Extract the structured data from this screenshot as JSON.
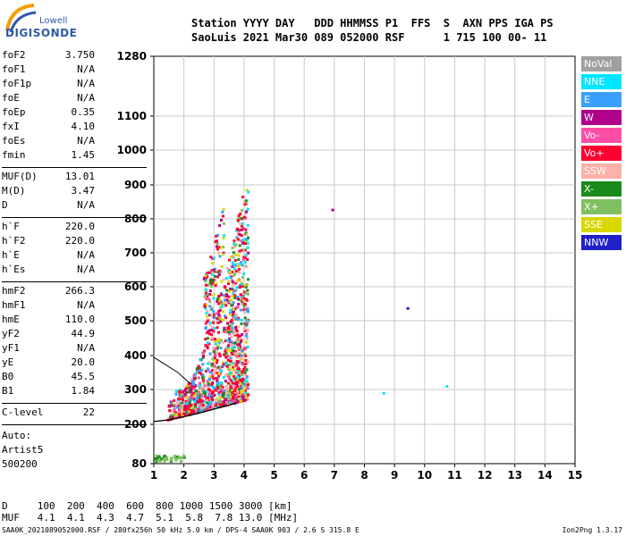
{
  "logo": {
    "line1": "Lowell",
    "line2": "DIGISONDE"
  },
  "header": {
    "line1": "Station YYYY DAY   DDD HHMMSS P1  FFS  S  AXN PPS IGA PS",
    "line2": "SaoLuis 2021 Mar30 089 052000 RSF      1 715 100 00- 11"
  },
  "params": [
    {
      "label": "foF2",
      "value": "3.750"
    },
    {
      "label": "foF1",
      "value": "N/A"
    },
    {
      "label": "foF1p",
      "value": "N/A"
    },
    {
      "label": "foE",
      "value": "N/A"
    },
    {
      "label": "foEp",
      "value": "0.35"
    },
    {
      "label": "fxI",
      "value": "4.10"
    },
    {
      "label": "foEs",
      "value": "N/A"
    },
    {
      "label": "fmin",
      "value": "1.45"
    },
    {
      "label": "MUF(D)",
      "value": "13.01"
    },
    {
      "label": "M(D)",
      "value": "3.47"
    },
    {
      "label": "D",
      "value": "N/A"
    },
    {
      "label": "h`F",
      "value": "220.0"
    },
    {
      "label": "h`F2",
      "value": "220.0"
    },
    {
      "label": "h`E",
      "value": "N/A"
    },
    {
      "label": "h`Es",
      "value": "N/A"
    },
    {
      "label": "hmF2",
      "value": "266.3"
    },
    {
      "label": "hmF1",
      "value": "N/A"
    },
    {
      "label": "hmE",
      "value": "110.0"
    },
    {
      "label": "yF2",
      "value": "44.9"
    },
    {
      "label": "yF1",
      "value": "N/A"
    },
    {
      "label": "yE",
      "value": "20.0"
    },
    {
      "label": "B0",
      "value": "45.5"
    },
    {
      "label": "B1",
      "value": "1.84"
    },
    {
      "label": "C-level",
      "value": "22"
    }
  ],
  "auto": {
    "line1": "Auto:",
    "line2": "Artist5",
    "line3": "500200"
  },
  "legend": [
    {
      "label": "NoVal",
      "color": "#a0a0a0"
    },
    {
      "label": "NNE",
      "color": "#00e5ff"
    },
    {
      "label": "E",
      "color": "#3aa0ff"
    },
    {
      "label": "W",
      "color": "#b0008c"
    },
    {
      "label": "Vo-",
      "color": "#ff4da6"
    },
    {
      "label": "Vo+",
      "color": "#ff0030"
    },
    {
      "label": "SSW",
      "color": "#ffb0a8"
    },
    {
      "label": "X-",
      "color": "#1a8a1a"
    },
    {
      "label": "X+",
      "color": "#80c060"
    },
    {
      "label": "SSE",
      "color": "#d8d800"
    },
    {
      "label": "NNW",
      "color": "#2020c8"
    }
  ],
  "distance_table": {
    "row1": "D     100  200  400  600  800 1000 1500 3000 [km]",
    "row2": "MUF   4.1  4.1  4.3  4.7  5.1  5.8  7.8 13.0 [MHz]"
  },
  "footer": {
    "left": "SAA0K_2021089052000.RSF / 280fx256h 50 kHz 5.0 km / DPS-4 SAA0K 903 / 2.6 S 315.8 E",
    "right": "Ion2Png 1.3.17"
  },
  "chart_data": {
    "type": "scatter",
    "xlabel": "",
    "ylabel": "",
    "xlim": [
      1,
      15
    ],
    "ylim": [
      80,
      1280
    ],
    "x_ticks": [
      1,
      2,
      3,
      4,
      5,
      6,
      7,
      8,
      9,
      10,
      11,
      12,
      13,
      14,
      15
    ],
    "y_ticks": [
      80,
      200,
      300,
      400,
      500,
      600,
      700,
      800,
      900,
      1000,
      1100,
      1280
    ],
    "y_scale": "quadratic-like ionogram height axis",
    "grid": true,
    "series": [
      {
        "legend": "Vo+",
        "description": "O-mode echo cluster",
        "x_range": [
          1.4,
          4.1
        ],
        "y_range": [
          210,
          720
        ]
      },
      {
        "legend": "W",
        "description": "oblique echoes",
        "x_range": [
          2.0,
          3.9
        ],
        "y_range": [
          300,
          1000
        ]
      },
      {
        "legend": "X+",
        "description": "X-mode echoes",
        "x_range": [
          2.5,
          4.1
        ],
        "y_range": [
          240,
          560
        ]
      },
      {
        "legend": "SSE",
        "description": "oblique echoes",
        "x_range": [
          2.6,
          3.8
        ],
        "y_range": [
          260,
          700
        ]
      }
    ],
    "trace_profile": {
      "x": [
        1.0,
        1.5,
        2.0,
        2.5,
        3.0,
        3.5,
        3.75
      ],
      "y": [
        208,
        213,
        222,
        232,
        244,
        255,
        262
      ]
    },
    "isolated_points": [
      {
        "x": 6.9,
        "y": 830,
        "legend": "W"
      },
      {
        "x": 9.4,
        "y": 540,
        "legend": "NNW"
      },
      {
        "x": 8.6,
        "y": 293,
        "legend": "NNE"
      },
      {
        "x": 10.7,
        "y": 313,
        "legend": "NNE"
      }
    ]
  }
}
